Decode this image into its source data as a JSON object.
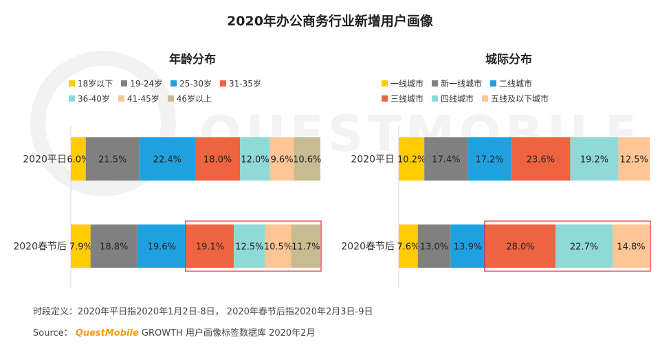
{
  "title": "2020年办公商务行业新增用户画像",
  "chart_data": [
    {
      "type": "bar",
      "orientation": "horizontal",
      "stacked": true,
      "title": "年龄分布",
      "categories": [
        "2020平日",
        "2020春节后"
      ],
      "series": [
        {
          "name": "18岁以下",
          "color": "#FFCC00",
          "values": [
            6.0,
            7.9
          ]
        },
        {
          "name": "19-24岁",
          "color": "#808080",
          "values": [
            21.5,
            18.8
          ]
        },
        {
          "name": "25-30岁",
          "color": "#1FA1E0",
          "values": [
            22.4,
            19.6
          ]
        },
        {
          "name": "31-35岁",
          "color": "#EE6340",
          "values": [
            18.0,
            19.1
          ]
        },
        {
          "name": "36-40岁",
          "color": "#8FD9D6",
          "values": [
            12.0,
            12.5
          ]
        },
        {
          "name": "41-45岁",
          "color": "#FFC594",
          "values": [
            9.6,
            10.5
          ]
        },
        {
          "name": "46岁以上",
          "color": "#C7BB91",
          "values": [
            10.6,
            11.7
          ]
        }
      ],
      "value_labels": [
        [
          "6.0%",
          "21.5%",
          "22.4%",
          "18.0%",
          "12.0%",
          "9.6%",
          "10.6%"
        ],
        [
          "7.9%",
          "18.8%",
          "19.6%",
          "19.1%",
          "12.5%",
          "10.5%",
          "11.7%"
        ]
      ],
      "legend_position": "top",
      "highlight": {
        "row": 1,
        "from_series": 3,
        "to_series": 6,
        "color": "#D42E2E"
      }
    },
    {
      "type": "bar",
      "orientation": "horizontal",
      "stacked": true,
      "title": "城际分布",
      "categories": [
        "2020平日",
        "2020春节后"
      ],
      "series": [
        {
          "name": "一线城市",
          "color": "#FFCC00",
          "values": [
            10.2,
            7.6
          ]
        },
        {
          "name": "新一线城市",
          "color": "#808080",
          "values": [
            17.4,
            13.0
          ]
        },
        {
          "name": "二线城市",
          "color": "#1FA1E0",
          "values": [
            17.2,
            13.9
          ]
        },
        {
          "name": "三线城市",
          "color": "#EE6340",
          "values": [
            23.6,
            28.0
          ]
        },
        {
          "name": "四线城市",
          "color": "#8FD9D6",
          "values": [
            19.2,
            22.7
          ]
        },
        {
          "name": "五线及以下城市",
          "color": "#FFC594",
          "values": [
            12.5,
            14.8
          ]
        }
      ],
      "value_labels": [
        [
          "10.2%",
          "17.4%",
          "17.2%",
          "23.6%",
          "19.2%",
          "12.5%"
        ],
        [
          "7.6%",
          "13.0%",
          "13.9%",
          "28.0%",
          "22.7%",
          "14.8%"
        ]
      ],
      "legend_position": "top",
      "highlight": {
        "row": 1,
        "from_series": 3,
        "to_series": 5,
        "color": "#D42E2E"
      }
    }
  ],
  "footer": {
    "definition": "时段定义：2020年平日指2020年1月2日-8日， 2020年春节后指2020年2月3日-9日",
    "source_label": "Source：",
    "source_brand": "QuestMobile",
    "source_text": "GROWTH 用户画像标签数据库 2020年2月"
  },
  "watermark": "QUESTMOBILE"
}
